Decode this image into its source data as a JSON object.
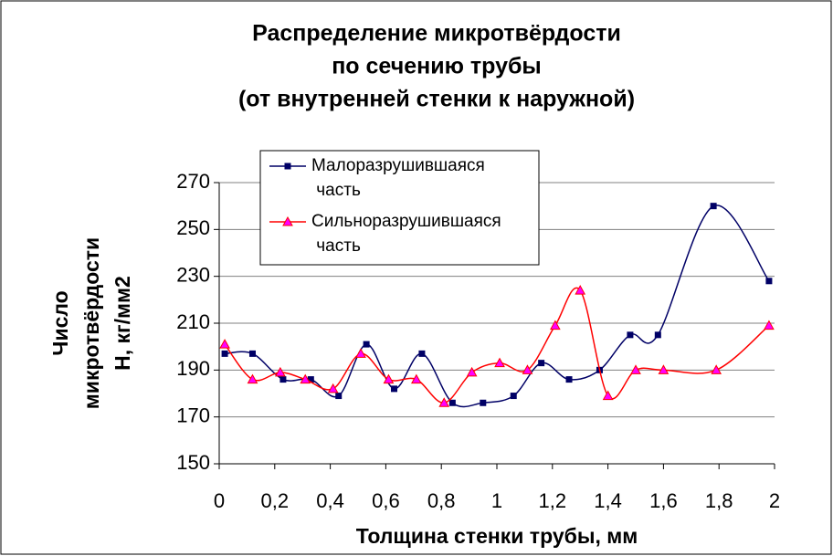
{
  "chart_data": {
    "type": "line",
    "title": [
      "Распределение микротвёрдости",
      "по сечению  трубы",
      "(от внутренней стенки к наружной)"
    ],
    "y_label": [
      "Число",
      "микротвёрдости",
      "Н, кг/мм2"
    ],
    "x_label": "Толщина стенки трубы, мм",
    "series": [
      {
        "name": "Малоразрушившаяся часть",
        "color": "#000066",
        "marker": "square",
        "x": [
          0.02,
          0.12,
          0.23,
          0.33,
          0.43,
          0.53,
          0.63,
          0.73,
          0.84,
          0.95,
          1.06,
          1.16,
          1.26,
          1.37,
          1.48,
          1.58,
          1.78,
          1.98
        ],
        "values": [
          197,
          197,
          186,
          186,
          179,
          201,
          182,
          197,
          176,
          176,
          179,
          193,
          186,
          190,
          205,
          205,
          260,
          228
        ]
      },
      {
        "name": "Сильноразрушившаяся часть",
        "color": "#ff0000",
        "marker": "triangle",
        "x": [
          0.02,
          0.12,
          0.22,
          0.31,
          0.41,
          0.51,
          0.61,
          0.71,
          0.81,
          0.91,
          1.01,
          1.11,
          1.21,
          1.3,
          1.4,
          1.5,
          1.6,
          1.79,
          1.98
        ],
        "values": [
          201,
          186,
          189,
          186,
          182,
          197,
          186,
          186,
          176,
          189,
          193,
          190,
          209,
          224,
          179,
          190,
          190,
          190,
          209
        ]
      }
    ],
    "xlim": [
      0,
      2
    ],
    "xticks": [
      0,
      {
        "value": 0.2,
        "label": "0,2"
      },
      {
        "value": 0.4,
        "label": "0,4"
      },
      {
        "value": 0.6,
        "label": "0,6"
      },
      {
        "value": 0.8,
        "label": "0,8"
      },
      1,
      {
        "value": 1.2,
        "label": "1,2"
      },
      {
        "value": 1.4,
        "label": "1,4"
      },
      {
        "value": 1.6,
        "label": "1,6"
      },
      {
        "value": 1.8,
        "label": "1,8"
      },
      2
    ],
    "ylim": [
      150,
      270
    ],
    "yticks": [
      150,
      170,
      190,
      210,
      230,
      250,
      270
    ],
    "grid": true,
    "smooth": true
  }
}
